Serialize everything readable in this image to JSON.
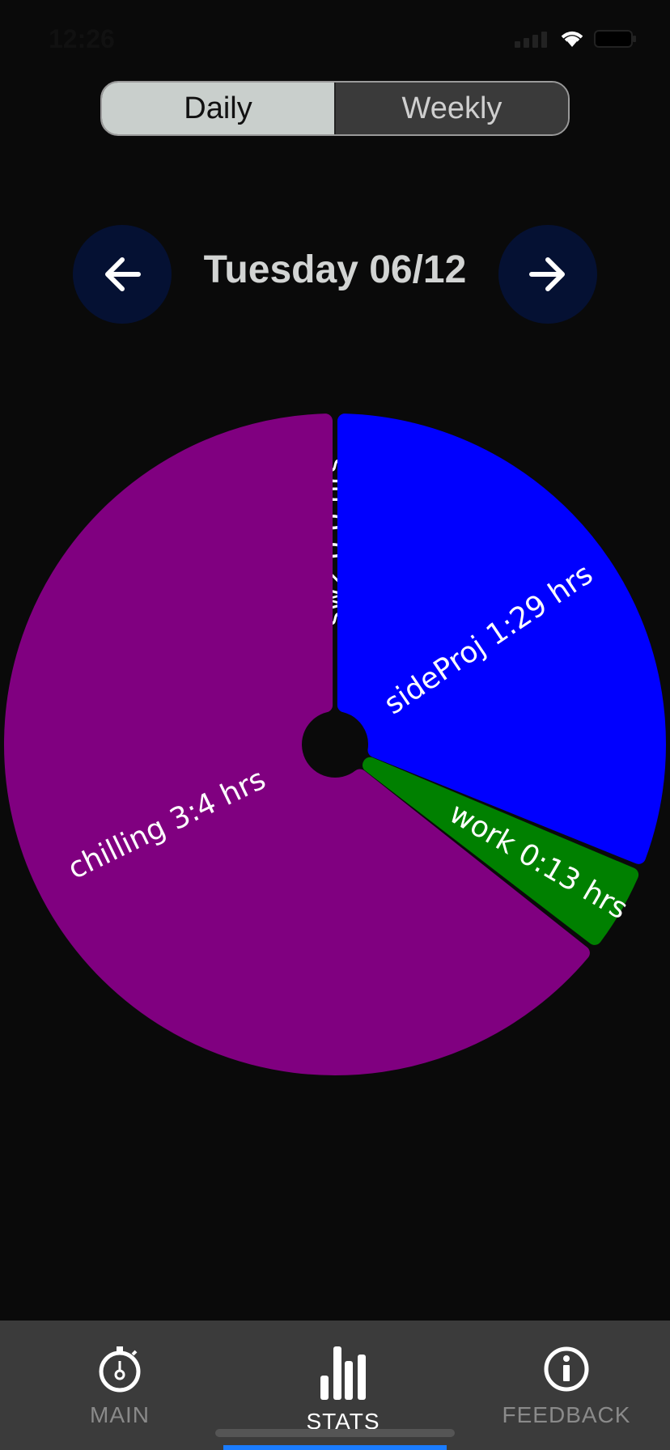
{
  "status_bar": {
    "time": "12:26"
  },
  "segment": {
    "daily_label": "Daily",
    "weekly_label": "Weekly",
    "selected": "Daily"
  },
  "date_nav": {
    "title": "Tuesday 06/12"
  },
  "chart_data": {
    "type": "pie",
    "title": "",
    "slices": [
      {
        "label": "sw2  0:0 hrs",
        "minutes": 0,
        "color": "#808080"
      },
      {
        "label": "sideProj  1:29 hrs",
        "minutes": 89,
        "color": "#0000ff"
      },
      {
        "label": "work  0:13 hrs",
        "minutes": 13,
        "color": "#008000"
      },
      {
        "label": "chilling  3:4 hrs",
        "minutes": 184,
        "color": "#800080"
      }
    ],
    "legend": "none"
  },
  "tabs": [
    {
      "id": "main",
      "label": "MAIN",
      "icon": "stopwatch-icon",
      "active": false
    },
    {
      "id": "stats",
      "label": "STATS",
      "icon": "bar-chart-icon",
      "active": true
    },
    {
      "id": "feedback",
      "label": "FEEDBACK",
      "icon": "info-icon",
      "active": false
    }
  ]
}
